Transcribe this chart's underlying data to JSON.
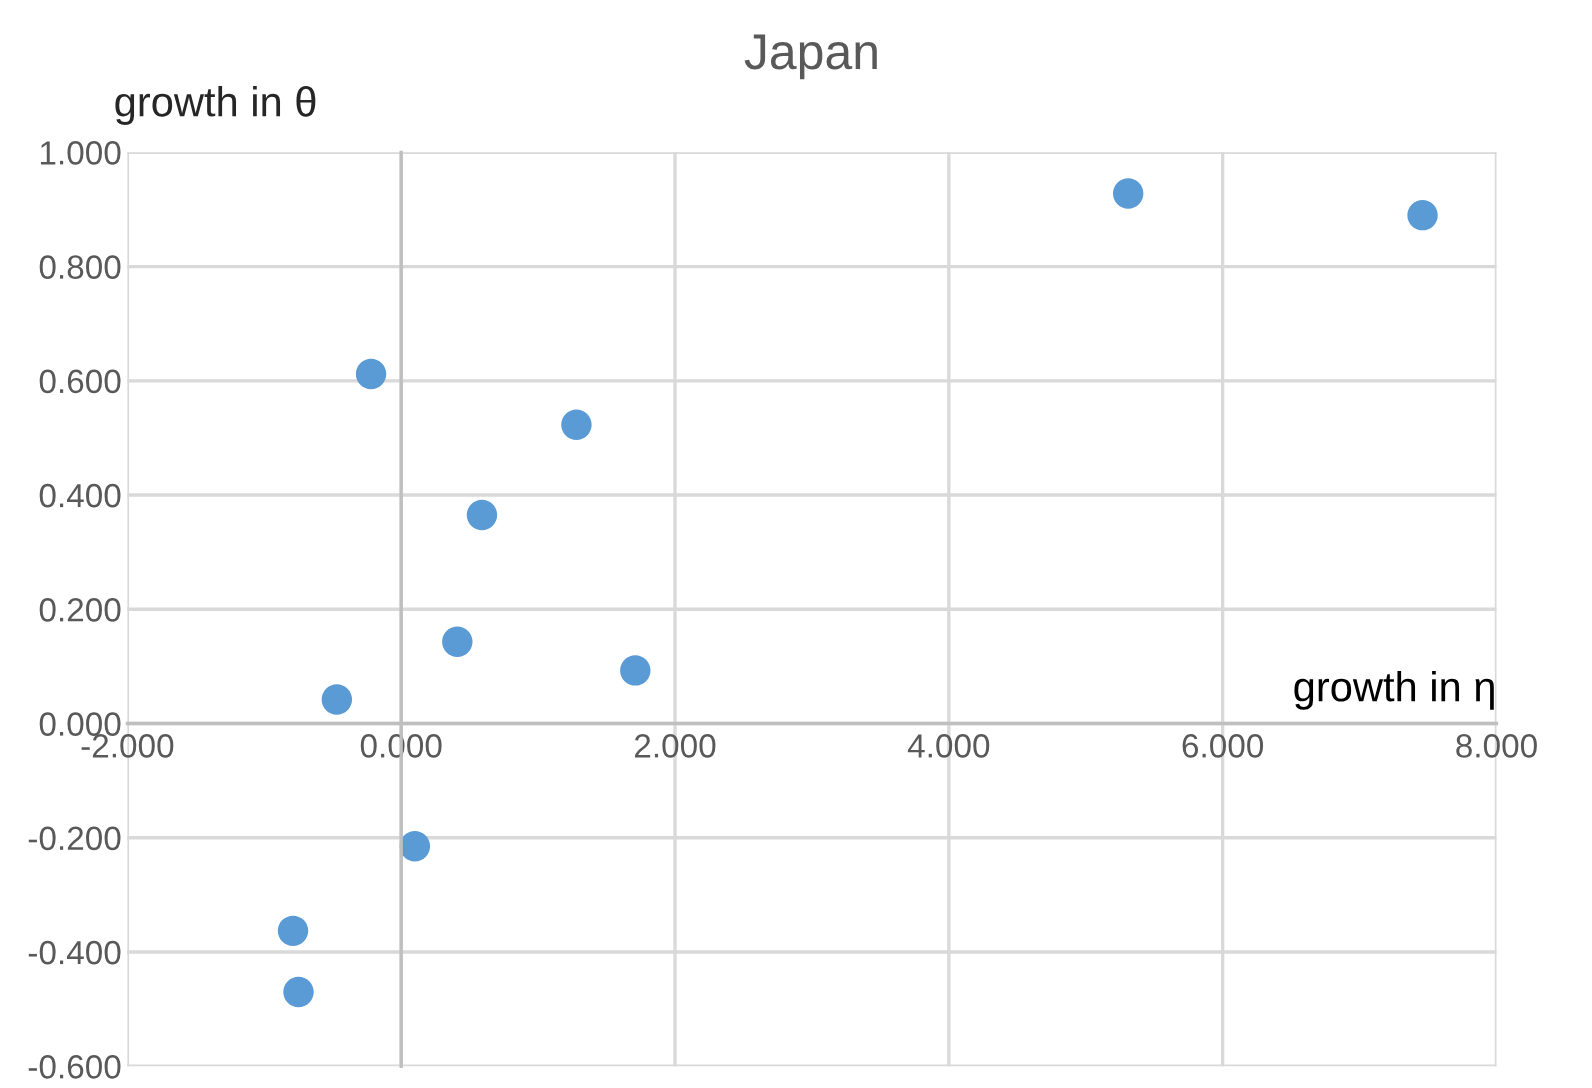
{
  "chart_data": {
    "type": "scatter",
    "title": "Japan",
    "xlabel": "growth in η",
    "ylabel": "growth in θ",
    "x": [
      -0.22,
      1.28,
      0.59,
      0.41,
      1.71,
      -0.47,
      0.1,
      -0.79,
      -0.75,
      5.31,
      7.46
    ],
    "series": [
      {
        "color": "#5b9bd5",
        "values": [
          0.612,
          0.523,
          0.365,
          0.143,
          0.093,
          0.042,
          -0.215,
          -0.363,
          -0.47,
          0.928,
          0.89
        ]
      }
    ],
    "xlim": [
      -2,
      8
    ],
    "xticks": [
      {
        "value": -2,
        "label": "-2.000"
      },
      {
        "value": 0,
        "label": "0.000"
      },
      {
        "value": 2,
        "label": "2.000"
      },
      {
        "value": 4,
        "label": "4.000"
      },
      {
        "value": 6,
        "label": "6.000"
      },
      {
        "value": 8,
        "label": "8.000"
      }
    ],
    "ylim": [
      -0.6,
      1
    ],
    "yticks": [
      {
        "value": -0.6,
        "label": "-0.600"
      },
      {
        "value": -0.4,
        "label": "-0.400"
      },
      {
        "value": -0.2,
        "label": "-0.200"
      },
      {
        "value": 0,
        "label": "0.000"
      },
      {
        "value": 0.2,
        "label": "0.200"
      },
      {
        "value": 0.4,
        "label": "0.400"
      },
      {
        "value": 0.6,
        "label": "0.600"
      },
      {
        "value": 0.8,
        "label": "0.800"
      },
      {
        "value": 1,
        "label": "1.000"
      }
    ],
    "grid": true,
    "marker": "circle"
  }
}
